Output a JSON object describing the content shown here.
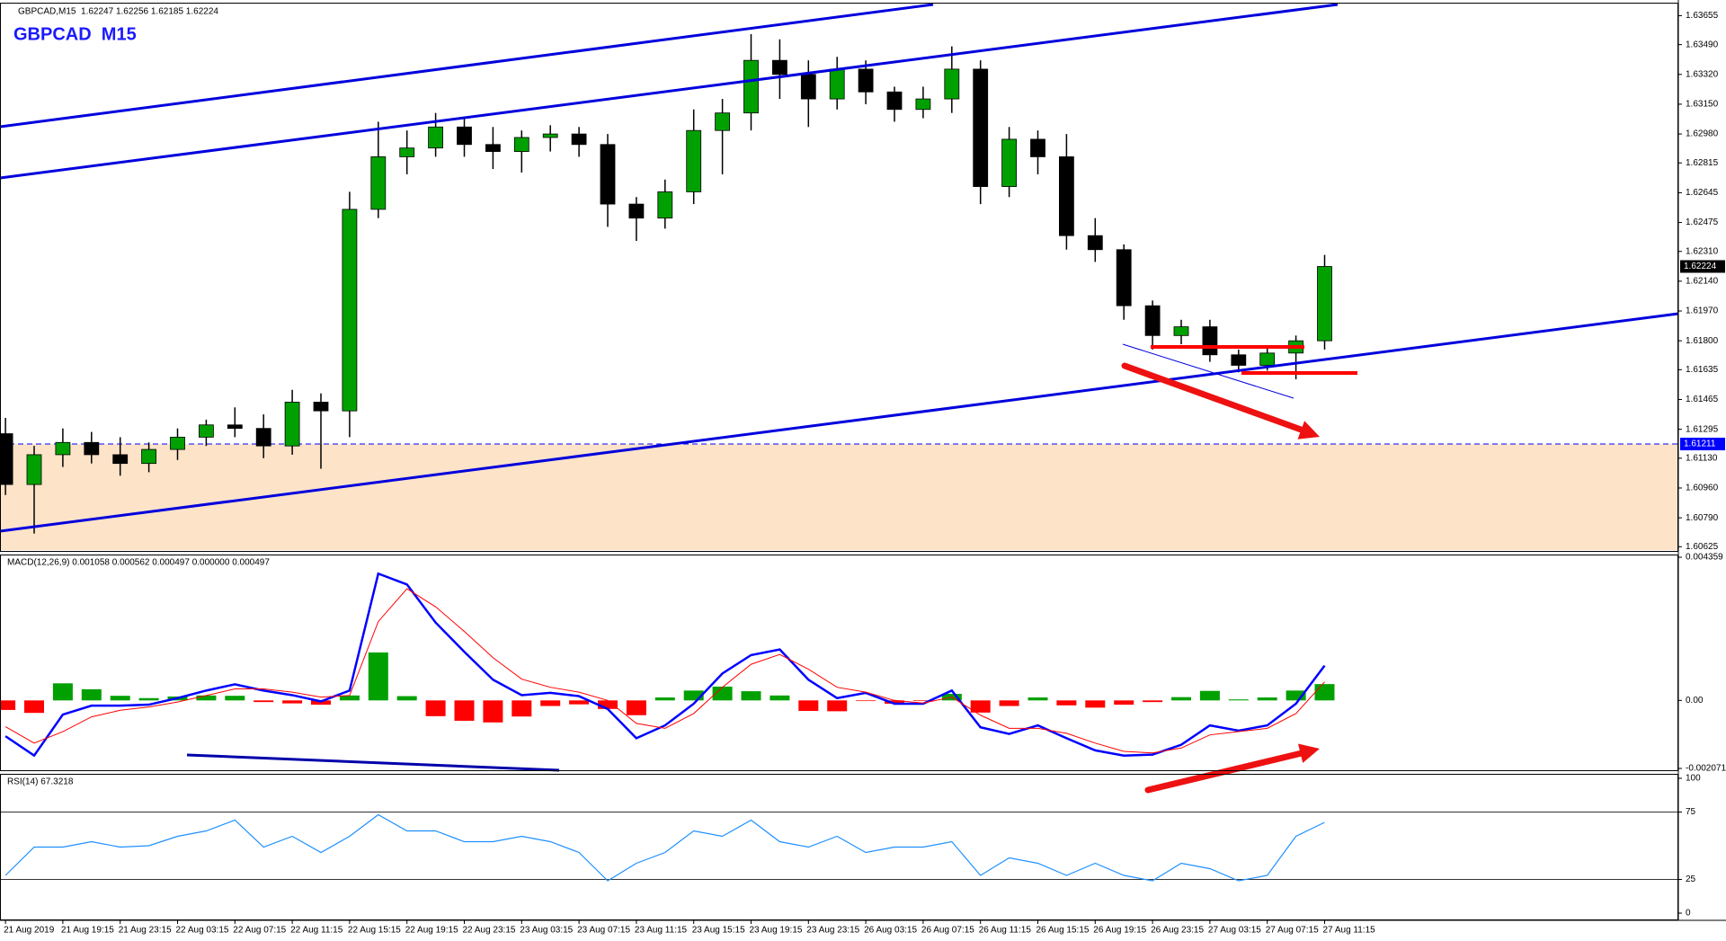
{
  "chart_data": [
    {
      "type": "candlestick",
      "title": "GBPCAD  M15",
      "subtitle": "GBPCAD,M15  1.62247 1.62256 1.62185 1.62224",
      "categories": [
        "21 Aug 2019",
        null,
        "21 Aug 19:15",
        null,
        "21 Aug 23:15",
        null,
        "22 Aug 03:15",
        null,
        "22 Aug 07:15",
        null,
        "22 Aug 11:15",
        null,
        "22 Aug 15:15",
        null,
        "22 Aug 19:15",
        null,
        "22 Aug 23:15",
        null,
        "23 Aug 03:15",
        null,
        "23 Aug 07:15",
        null,
        "23 Aug 11:15",
        null,
        "23 Aug 15:15",
        null,
        "23 Aug 19:15",
        null,
        "23 Aug 23:15",
        null,
        "26 Aug 03:15",
        null,
        "26 Aug 07:15",
        null,
        "26 Aug 11:15",
        null,
        "26 Aug 15:15",
        null,
        "26 Aug 19:15",
        null,
        "26 Aug 23:15",
        null,
        "27 Aug 03:15",
        null,
        "27 Aug 07:15",
        null,
        "27 Aug 11:15"
      ],
      "open": [
        1.6127,
        1.6098,
        1.6115,
        1.6122,
        1.6115,
        1.611,
        1.6118,
        1.6125,
        1.6132,
        1.613,
        1.612,
        1.6145,
        1.614,
        1.6255,
        1.6285,
        1.629,
        1.6302,
        1.6292,
        1.6288,
        1.6296,
        1.6298,
        1.6292,
        1.6258,
        1.625,
        1.6265,
        1.63,
        1.631,
        1.634,
        1.6332,
        1.6318,
        1.6335,
        1.6322,
        1.6312,
        1.6318,
        1.6335,
        1.6268,
        1.6295,
        1.6285,
        1.624,
        1.6232,
        1.62,
        1.6183,
        1.6188,
        1.6172,
        1.6166,
        1.6173,
        1.618
      ],
      "high": [
        1.6136,
        1.612,
        1.613,
        1.6128,
        1.6125,
        1.6122,
        1.613,
        1.6135,
        1.6142,
        1.6138,
        1.6152,
        1.615,
        1.6265,
        1.6305,
        1.63,
        1.631,
        1.6308,
        1.6302,
        1.63,
        1.6303,
        1.6302,
        1.6298,
        1.6262,
        1.6272,
        1.6312,
        1.6318,
        1.6355,
        1.6352,
        1.634,
        1.6342,
        1.634,
        1.6325,
        1.6325,
        1.6348,
        1.634,
        1.6302,
        1.63,
        1.6298,
        1.625,
        1.6235,
        1.6203,
        1.6192,
        1.6192,
        1.6175,
        1.6177,
        1.6183,
        1.6229
      ],
      "low": [
        1.6092,
        1.607,
        1.6108,
        1.611,
        1.6103,
        1.6105,
        1.6112,
        1.612,
        1.6125,
        1.6113,
        1.6115,
        1.6107,
        1.6125,
        1.625,
        1.6275,
        1.6285,
        1.6285,
        1.6278,
        1.6276,
        1.6288,
        1.6285,
        1.6245,
        1.6237,
        1.6244,
        1.6258,
        1.6275,
        1.63,
        1.6318,
        1.6302,
        1.6312,
        1.6315,
        1.6305,
        1.6307,
        1.631,
        1.6258,
        1.6262,
        1.6275,
        1.6232,
        1.6225,
        1.6192,
        1.6175,
        1.6178,
        1.6168,
        1.6162,
        1.6163,
        1.6158,
        1.6175
      ],
      "close": [
        1.6098,
        1.6115,
        1.6122,
        1.6115,
        1.611,
        1.6118,
        1.6125,
        1.6132,
        1.613,
        1.612,
        1.6145,
        1.614,
        1.6255,
        1.6285,
        1.629,
        1.6302,
        1.6292,
        1.6288,
        1.6296,
        1.6298,
        1.6292,
        1.6258,
        1.625,
        1.6265,
        1.63,
        1.631,
        1.634,
        1.6332,
        1.6318,
        1.6335,
        1.6322,
        1.6312,
        1.6318,
        1.6335,
        1.6268,
        1.6295,
        1.6285,
        1.624,
        1.6232,
        1.62,
        1.6183,
        1.6188,
        1.6172,
        1.6166,
        1.6173,
        1.618,
        1.62224
      ],
      "up_color": "#00a000",
      "down_color": "#000000",
      "ylim": [
        1.60606,
        1.63724
      ],
      "yticks": [
        1.63655,
        {
          "value": 1.6349,
          "label": "1.63490"
        },
        {
          "value": 1.6332,
          "label": "1.63320"
        },
        {
          "value": 1.6315,
          "label": "1.63150"
        },
        {
          "value": 1.6298,
          "label": "1.62980"
        },
        1.62815,
        1.62645,
        1.62475,
        {
          "value": 1.6231,
          "label": "1.62310"
        },
        {
          "value": 1.6214,
          "label": "1.62140"
        },
        {
          "value": 1.6197,
          "label": "1.61970"
        },
        {
          "value": 1.618,
          "label": "1.61800"
        },
        1.61635,
        1.61465,
        1.61295,
        {
          "value": 1.6113,
          "label": "1.61130"
        },
        {
          "value": 1.6096,
          "label": "1.60960"
        },
        {
          "value": 1.6079,
          "label": "1.60790"
        },
        1.60625
      ],
      "last_price": 1.62224,
      "level": 1.61211,
      "level_color": "#0000ff",
      "zone_color": "#fde3c8"
    },
    {
      "type": "macd",
      "title": "MACD(12,26,9) 0.001058 0.000562 0.000497 0.000000 0.000497",
      "series": [
        {
          "color": "#0000ff",
          "values": [
            -0.00109,
            -0.00168,
            -0.00043,
            -0.00016,
            -0.00016,
            -0.00013,
            7e-05,
            0.0003,
            0.00049,
            0.0003,
            0.00016,
            -3e-05,
            0.0003,
            0.00386,
            0.00353,
            0.00237,
            0.00148,
            0.00063,
            0.00016,
            0.00023,
            0.00013,
            -0.00026,
            -0.00115,
            -0.00076,
            -0.0001,
            0.00082,
            0.00138,
            0.00155,
            0.00063,
            7e-05,
            0.00023,
            -0.0001,
            -0.0001,
            0.0003,
            -0.00082,
            -0.00102,
            -0.00076,
            -0.00115,
            -0.00152,
            -0.00168,
            -0.00165,
            -0.00135,
            -0.00076,
            -0.00092,
            -0.00076,
            -0.0001,
            0.001058
          ]
        },
        {
          "color": "#ff0000",
          "values": [
            -0.0008,
            -0.0013,
            -0.00095,
            -0.0005,
            -0.0003,
            -0.0002,
            -5e-05,
            0.00015,
            0.00035,
            0.00035,
            0.00025,
            0.0001,
            0.00015,
            0.0024,
            0.0034,
            0.00285,
            0.0021,
            0.0013,
            0.00065,
            0.0004,
            0.00025,
            0,
            -0.0007,
            -0.00085,
            -0.0004,
            0.0004,
            0.0011,
            0.0014,
            0.00095,
            0.0004,
            0.00025,
            0,
            -8e-05,
            0.0001,
            -0.00045,
            -0.00085,
            -0.00085,
            -0.001,
            -0.0013,
            -0.00155,
            -0.0016,
            -0.00145,
            -0.00105,
            -0.00095,
            -0.00085,
            -0.0004,
            0.000562
          ]
        }
      ],
      "histogram": {
        "up_color": "#00a000",
        "down_color": "#ff0000",
        "values": [
          -0.00029,
          -0.00038,
          0.00052,
          0.00034,
          0.00014,
          7e-05,
          0.00012,
          0.00015,
          0.00014,
          -5e-05,
          -9e-05,
          -0.00013,
          0.00015,
          0.00146,
          0.00013,
          -0.00048,
          -0.00062,
          -0.00067,
          -0.00049,
          -0.00017,
          -0.00012,
          -0.00026,
          -0.00045,
          9e-05,
          0.0003,
          0.00042,
          0.00028,
          0.00015,
          -0.00032,
          -0.00033,
          -2e-05,
          -0.0001,
          -2e-05,
          0.0002,
          -0.00037,
          -0.00017,
          9e-05,
          -0.00015,
          -0.00022,
          -0.00013,
          -5e-05,
          0.0001,
          0.00029,
          3e-05,
          9e-05,
          0.0003,
          0.000497
        ]
      },
      "ylim": [
        -0.002071,
        0.004359
      ],
      "yticks": [
        0.004359,
        {
          "value": 0,
          "label": "0.00"
        },
        -0.002071
      ]
    },
    {
      "type": "line",
      "title": "RSI(14) 67.3218",
      "color": "#1e90ff",
      "values": [
        28,
        49,
        49,
        53,
        49,
        50,
        57,
        61,
        69,
        49,
        57,
        45,
        57,
        73,
        61,
        61,
        53,
        53,
        57,
        53,
        45,
        24,
        37,
        45,
        61,
        57,
        69,
        53,
        49,
        57,
        45,
        49,
        49,
        53,
        28,
        41,
        37,
        28,
        37,
        28,
        24,
        37,
        33,
        24,
        28,
        57,
        67.3218
      ],
      "ylim": [
        0,
        100
      ],
      "yticks": [
        100,
        75,
        25,
        0
      ],
      "levels": [
        75,
        25
      ]
    }
  ]
}
